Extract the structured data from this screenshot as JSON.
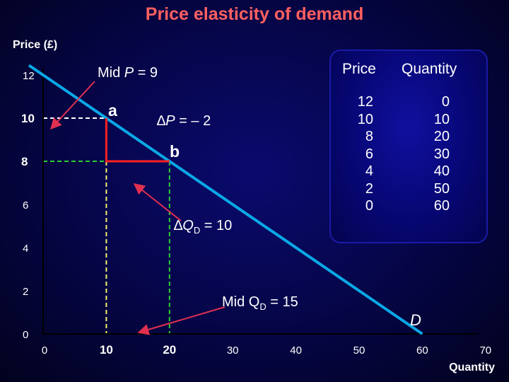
{
  "title": "Price elasticity of demand",
  "chart_data": {
    "type": "line",
    "title": "Price elasticity of demand",
    "ylabel": "Price (£)",
    "xlabel": "Quantity",
    "xlim": [
      0,
      70
    ],
    "ylim": [
      0,
      12
    ],
    "x_ticks": [
      "0",
      "10",
      "20",
      "30",
      "40",
      "50",
      "60",
      "70"
    ],
    "y_ticks": [
      "0",
      "2",
      "4",
      "6",
      "8",
      "10",
      "12"
    ],
    "series": [
      {
        "name": "D",
        "x": [
          0,
          10,
          20,
          30,
          40,
          50,
          60
        ],
        "y": [
          12,
          10,
          8,
          6,
          4,
          2,
          0
        ]
      }
    ],
    "points": [
      {
        "label": "a",
        "x": 10,
        "y": 10
      },
      {
        "label": "b",
        "x": 20,
        "y": 8
      }
    ],
    "annotations": {
      "mid_p": "Mid P = 9",
      "delta_p": "∆P = – 2",
      "delta_q": "∆QD = 10",
      "mid_q": "Mid QD = 15"
    },
    "table": {
      "headers": [
        "Price",
        "Quantity"
      ],
      "rows": [
        [
          "12",
          "0"
        ],
        [
          "10",
          "10"
        ],
        [
          "8",
          "20"
        ],
        [
          "6",
          "30"
        ],
        [
          "4",
          "40"
        ],
        [
          "2",
          "50"
        ],
        [
          "0",
          "60"
        ]
      ]
    }
  },
  "labels": {
    "y_axis": "Price (£)",
    "x_axis": "Quantity",
    "demand": "D",
    "point_a": "a",
    "point_b": "b",
    "mid_p_prefix": "Mid ",
    "mid_p_var": "P",
    "mid_p_suffix": " = 9",
    "dp_delta": "∆",
    "dp_var": "P",
    "dp_suffix": " = – 2",
    "dq_delta": "∆",
    "dq_var": "Q",
    "dq_sub": "D",
    "dq_suffix": " = 10",
    "mq_prefix": "Mid Q",
    "mq_sub": "D",
    "mq_suffix": " = 15"
  },
  "colors": {
    "demand": "#0aa8e6",
    "dashed_white": "#ffffff",
    "dashed_green": "#2ed02e",
    "dashed_yellow": "#f0f06a",
    "triangle": "#ff2020",
    "arrow": "#e03050",
    "title": "#ff6060"
  }
}
